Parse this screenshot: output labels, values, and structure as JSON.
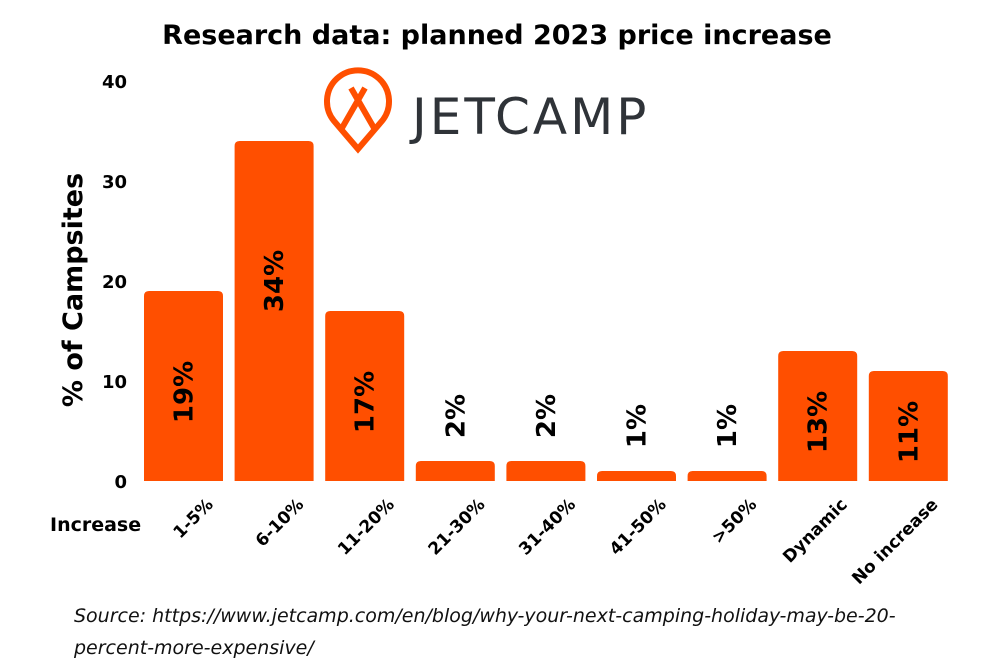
{
  "chart_data": {
    "type": "bar",
    "title": "Research data: planned 2023 price increase",
    "xlabel": "Increase",
    "ylabel": "% of Campsites",
    "ylim": [
      0,
      40
    ],
    "yticks": [
      0,
      10,
      20,
      30,
      40
    ],
    "grid": false,
    "categories": [
      "1-5%",
      "6-10%",
      "11-20%",
      "21-30%",
      "31-40%",
      "41-50%",
      ">50%",
      "Dynamic",
      "No increase"
    ],
    "values": [
      19,
      34,
      17,
      2,
      2,
      1,
      1,
      13,
      11
    ],
    "data_labels": [
      "19%",
      "34%",
      "17%",
      "2%",
      "2%",
      "1%",
      "1%",
      "13%",
      "11%"
    ],
    "bar_color": "#FF4F00"
  },
  "logo": {
    "name": "JETCAMP",
    "color": "#FF4F00",
    "text_color": "#2f3338"
  },
  "source": {
    "label": "Source",
    "text": ": https://www.jetcamp.com/en/blog/why-your-next-camping-holiday-may-be-20-percent-more-expensive/"
  }
}
